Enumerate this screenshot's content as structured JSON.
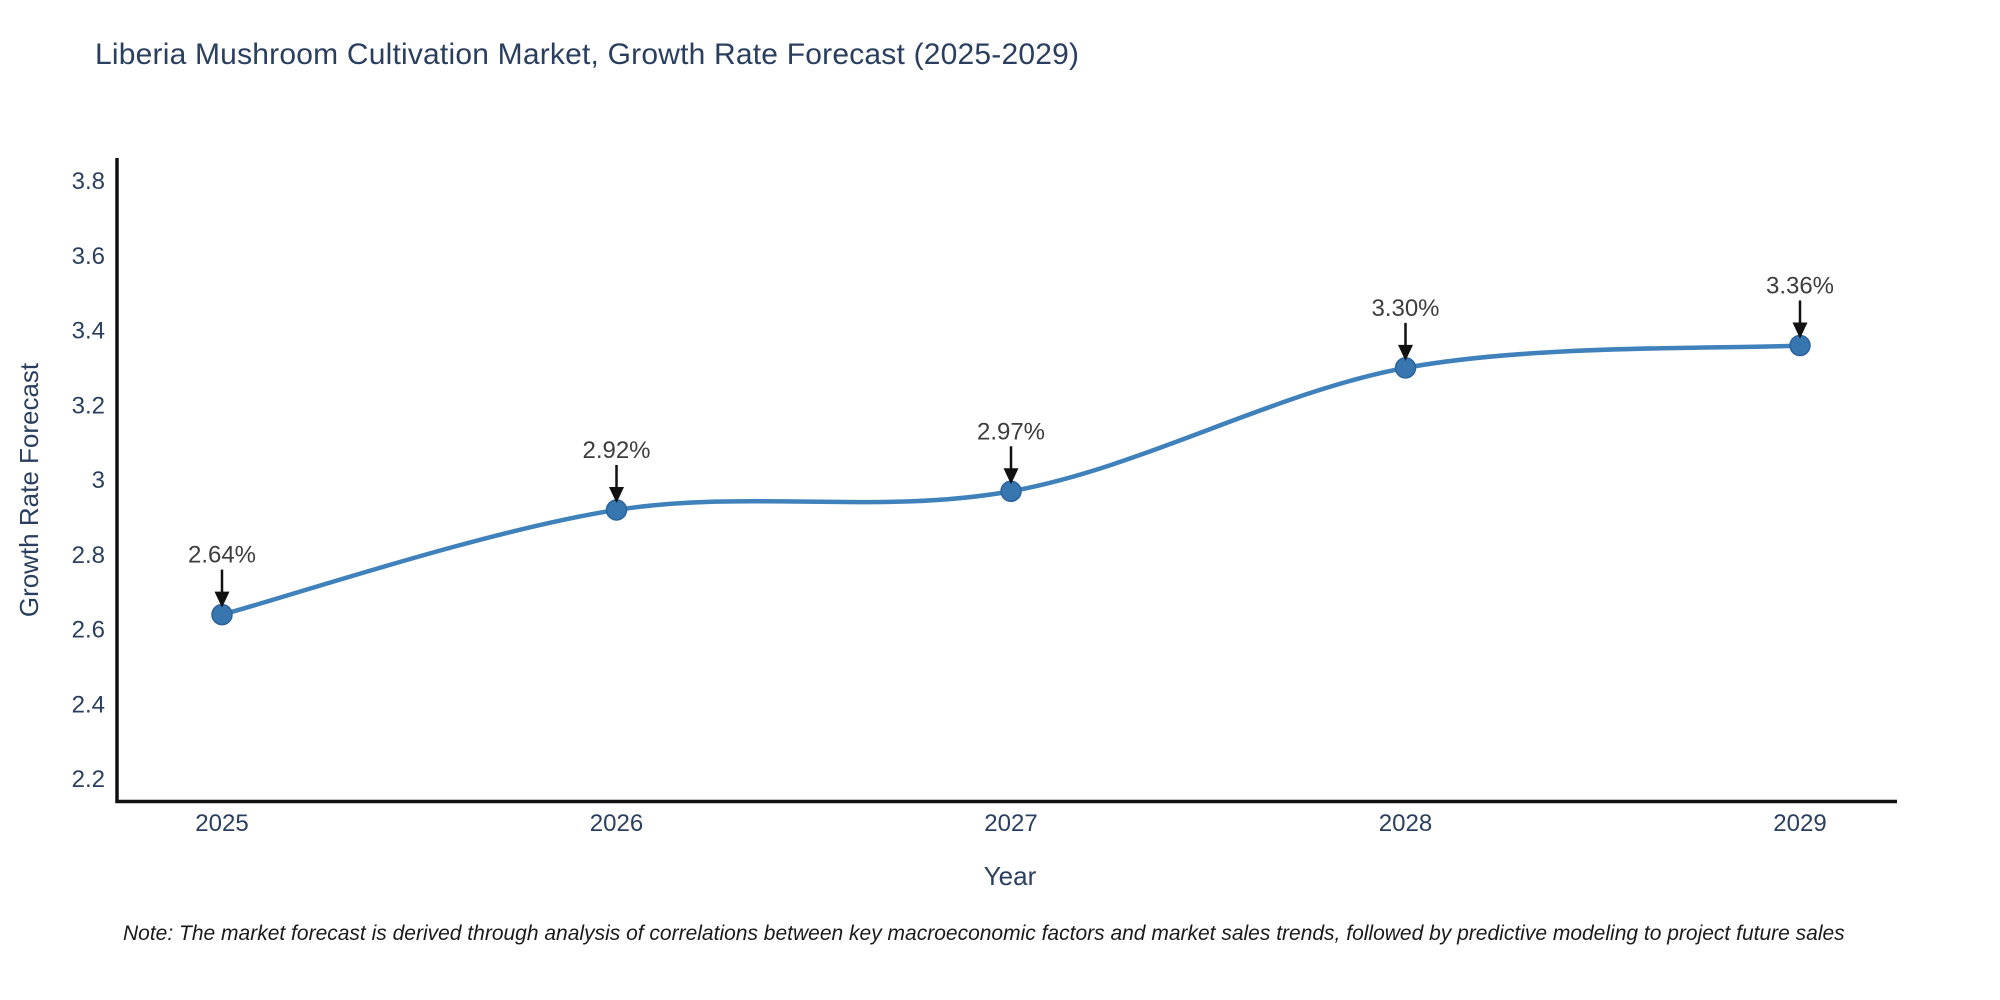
{
  "header": {
    "title": "Liberia Mushroom Cultivation Market, Growth Rate Forecast (2025-2029)"
  },
  "chart_data": {
    "type": "line",
    "title": "Liberia Mushroom Cultivation Market, Growth Rate Forecast (2025-2029)",
    "xlabel": "Year",
    "ylabel": "Growth Rate Forecast",
    "x": [
      2025,
      2026,
      2027,
      2028,
      2029
    ],
    "series": [
      {
        "name": "Growth Rate Forecast",
        "values": [
          2.64,
          2.92,
          2.97,
          3.3,
          3.36
        ]
      }
    ],
    "point_labels": [
      "2.64%",
      "2.92%",
      "2.97%",
      "3.30%",
      "3.36%"
    ],
    "xtick_labels": [
      "2025",
      "2026",
      "2027",
      "2028",
      "2029"
    ],
    "ytick_values": [
      2.2,
      2.4,
      2.6,
      2.8,
      3.0,
      3.2,
      3.4,
      3.6,
      3.8
    ],
    "ytick_labels": [
      "2.2",
      "2.4",
      "2.6",
      "2.8",
      "3",
      "3.2",
      "3.4",
      "3.6",
      "3.8"
    ],
    "ylim": [
      2.14,
      3.86
    ],
    "grid": false,
    "legend": "none",
    "curve": "spline",
    "annotations_have_arrows": true
  },
  "note": {
    "text": "Note: The market forecast is derived through analysis of correlations between key macroeconomic factors and market sales trends, followed by predictive modeling to project future sales"
  },
  "colors": {
    "background": "#ffffff",
    "title_text": "#2a3f5f",
    "axis_text": "#2a3f5f",
    "annotation_text": "#3d3d3d",
    "spine": "#111111",
    "line": "#3f81bb",
    "marker_fill": "#3776ae",
    "marker_edge": "#2d639c",
    "arrow": "#111111"
  }
}
